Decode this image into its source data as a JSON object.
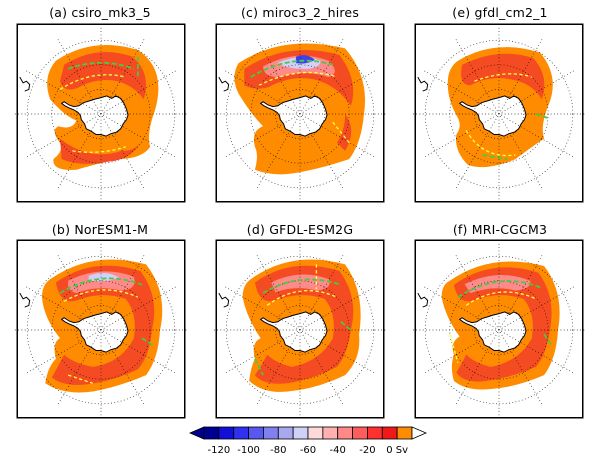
{
  "panels": [
    {
      "label": "(a) csiro_mk3_5"
    },
    {
      "label": "(c) miroc3_2_hires"
    },
    {
      "label": "(e) gfdl_cm2_1"
    },
    {
      "label": "(b) NorESM1-M"
    },
    {
      "label": "(d) GFDL-ESM2G"
    },
    {
      "label": "(f) MRI-CGCM3"
    }
  ],
  "colorbar": {
    "ticks": [
      "-120",
      "-100",
      "-80",
      "-60",
      "-40",
      "-20",
      "0 Sv"
    ],
    "colors": [
      "#000090",
      "#1010d8",
      "#3030f0",
      "#5858f0",
      "#8080f0",
      "#a8a8f0",
      "#d0d0f8",
      "#ffd8d8",
      "#ffb0b0",
      "#ff8888",
      "#ff5c5c",
      "#ff3030",
      "#f01818",
      "#ff8c00"
    ]
  },
  "colors": {
    "ocean_outer": "#ff8c00",
    "ocean_mid": "#f54b22",
    "ocean_inner": "#ff8a8a",
    "ocean_low": "#d0d0f8",
    "ocean_min": "#4040e8",
    "contour_green": "#44cc44",
    "contour_yellow": "#ffff44"
  }
}
